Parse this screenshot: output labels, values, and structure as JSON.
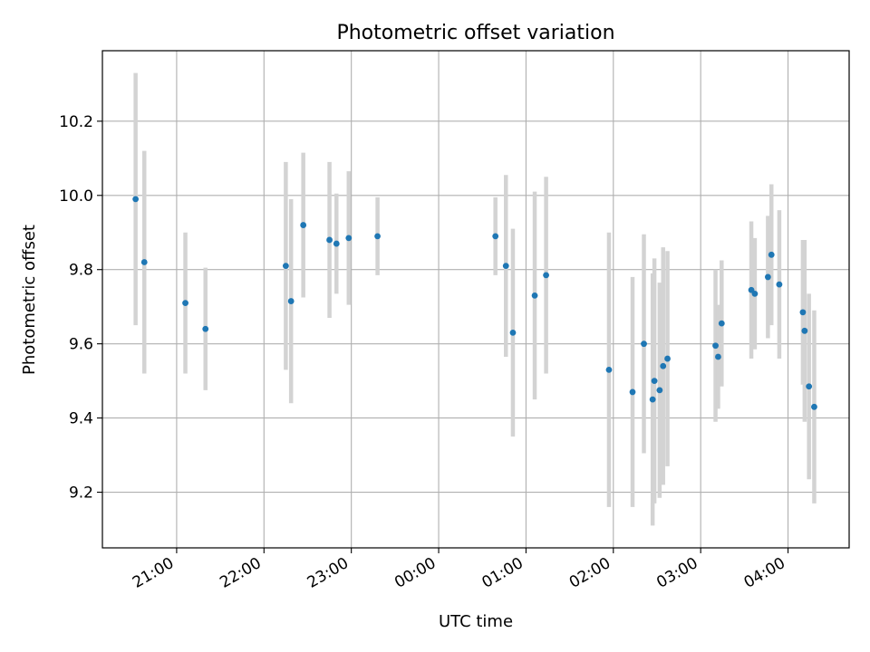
{
  "chart_data": {
    "type": "scatter",
    "title": "Photometric offset variation",
    "xlabel": "UTC time",
    "ylabel": "Photometric offset",
    "x_ticks": [
      "21:00",
      "22:00",
      "23:00",
      "00:00",
      "01:00",
      "02:00",
      "03:00",
      "04:00"
    ],
    "x_tick_hours": [
      21,
      22,
      23,
      24,
      25,
      26,
      27,
      28
    ],
    "y_ticks": [
      "9.2",
      "9.4",
      "9.6",
      "9.8",
      "10.0",
      "10.2"
    ],
    "ylim": [
      9.05,
      10.39
    ],
    "xlim_hours": [
      20.15,
      28.7
    ],
    "grid": true,
    "colors": {
      "points": "#1f77b4",
      "errorbars": "#d3d3d3",
      "grid": "#b0b0b0"
    },
    "points": [
      {
        "t": 20.53,
        "y": 9.99,
        "err": 0.34
      },
      {
        "t": 20.63,
        "y": 9.82,
        "err": 0.3
      },
      {
        "t": 21.1,
        "y": 9.71,
        "err": 0.19
      },
      {
        "t": 21.33,
        "y": 9.64,
        "err": 0.165
      },
      {
        "t": 22.25,
        "y": 9.81,
        "err": 0.28
      },
      {
        "t": 22.31,
        "y": 9.715,
        "err": 0.275
      },
      {
        "t": 22.45,
        "y": 9.92,
        "err": 0.195
      },
      {
        "t": 22.75,
        "y": 9.88,
        "err": 0.21
      },
      {
        "t": 22.83,
        "y": 9.87,
        "err": 0.135
      },
      {
        "t": 22.97,
        "y": 9.885,
        "err": 0.18
      },
      {
        "t": 23.3,
        "y": 9.89,
        "err": 0.105
      },
      {
        "t": 24.65,
        "y": 9.89,
        "err": 0.105
      },
      {
        "t": 24.77,
        "y": 9.81,
        "err": 0.245
      },
      {
        "t": 24.85,
        "y": 9.63,
        "err": 0.28
      },
      {
        "t": 25.1,
        "y": 9.73,
        "err": 0.28
      },
      {
        "t": 25.23,
        "y": 9.785,
        "err": 0.265
      },
      {
        "t": 25.95,
        "y": 9.53,
        "err": 0.37
      },
      {
        "t": 26.22,
        "y": 9.47,
        "err": 0.31
      },
      {
        "t": 26.35,
        "y": 9.6,
        "err": 0.295
      },
      {
        "t": 26.45,
        "y": 9.45,
        "err": 0.34
      },
      {
        "t": 26.47,
        "y": 9.5,
        "err": 0.33
      },
      {
        "t": 26.53,
        "y": 9.475,
        "err": 0.29
      },
      {
        "t": 26.57,
        "y": 9.54,
        "err": 0.32
      },
      {
        "t": 26.62,
        "y": 9.56,
        "err": 0.29
      },
      {
        "t": 27.17,
        "y": 9.595,
        "err": 0.205
      },
      {
        "t": 27.2,
        "y": 9.565,
        "err": 0.14
      },
      {
        "t": 27.24,
        "y": 9.655,
        "err": 0.17
      },
      {
        "t": 27.58,
        "y": 9.745,
        "err": 0.185
      },
      {
        "t": 27.62,
        "y": 9.735,
        "err": 0.15
      },
      {
        "t": 27.77,
        "y": 9.78,
        "err": 0.165
      },
      {
        "t": 27.81,
        "y": 9.84,
        "err": 0.19
      },
      {
        "t": 27.9,
        "y": 9.76,
        "err": 0.2
      },
      {
        "t": 28.17,
        "y": 9.685,
        "err": 0.195
      },
      {
        "t": 28.19,
        "y": 9.635,
        "err": 0.245
      },
      {
        "t": 28.24,
        "y": 9.485,
        "err": 0.25
      },
      {
        "t": 28.3,
        "y": 9.43,
        "err": 0.26
      }
    ]
  }
}
